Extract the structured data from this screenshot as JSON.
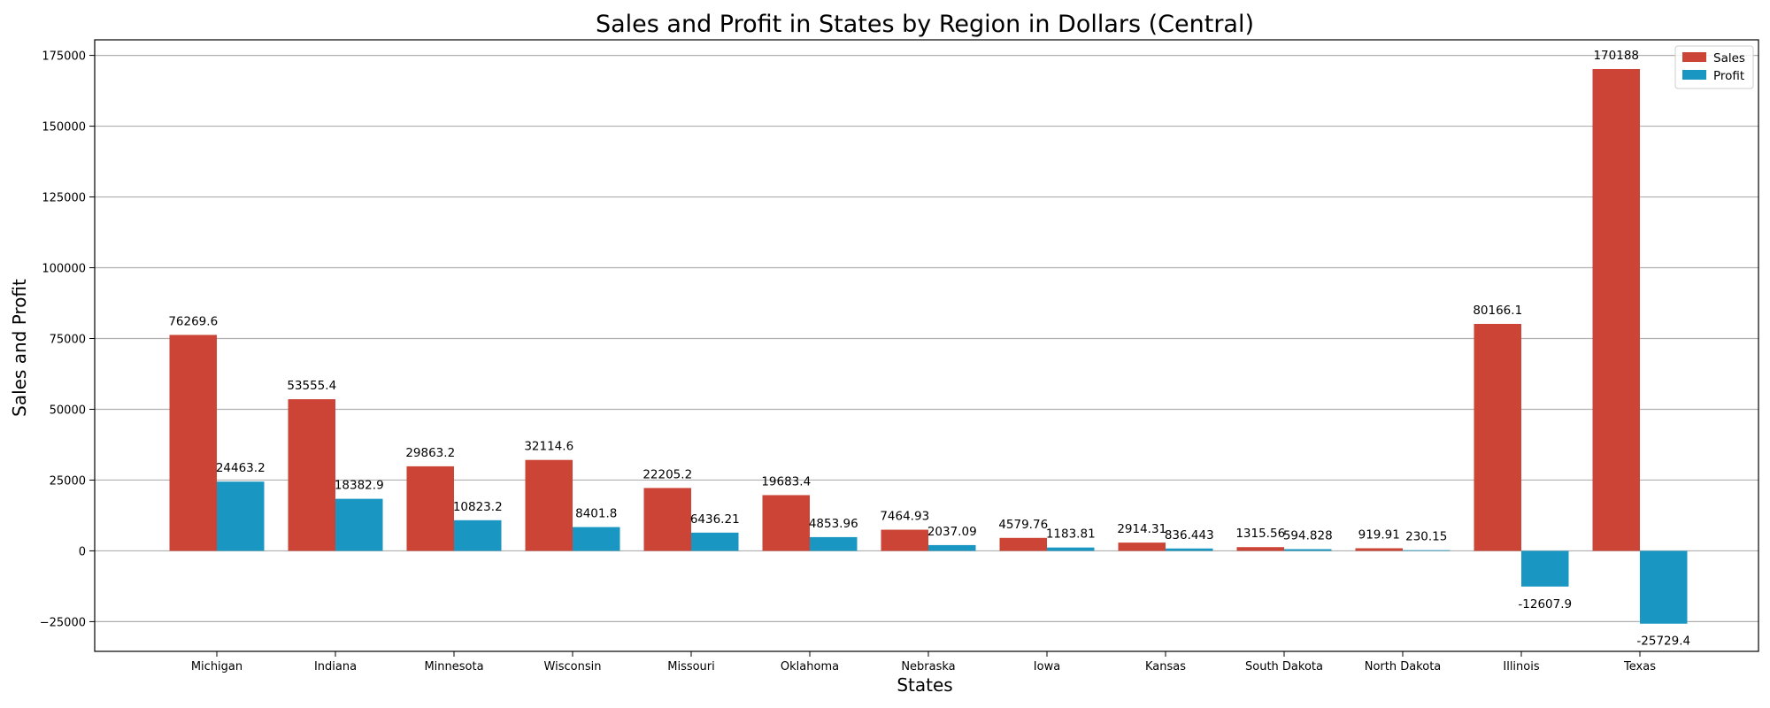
{
  "chart_data": {
    "type": "bar",
    "title": "Sales and Profit in States by Region in Dollars (Central)",
    "xlabel": "States",
    "ylabel": "Sales and Profit",
    "categories": [
      "Michigan",
      "Indiana",
      "Minnesota",
      "Wisconsin",
      "Missouri",
      "Oklahoma",
      "Nebraska",
      "Iowa",
      "Kansas",
      "South Dakota",
      "North Dakota",
      "Illinois",
      "Texas"
    ],
    "series": [
      {
        "name": "Sales",
        "color": "#cc4435",
        "values": [
          76269.6,
          53555.4,
          29863.2,
          32114.6,
          22205.2,
          19683.4,
          7464.93,
          4579.76,
          2914.31,
          1315.56,
          919.91,
          80166.1,
          170188
        ],
        "labels": [
          "76269.6",
          "53555.4",
          "29863.2",
          "32114.6",
          "22205.2",
          "19683.4",
          "7464.93",
          "4579.76",
          "2914.31",
          "1315.56",
          "919.91",
          "80166.1",
          "170188"
        ]
      },
      {
        "name": "Profit",
        "color": "#1a96c2",
        "values": [
          24463.2,
          18382.9,
          10823.2,
          8401.8,
          6436.21,
          4853.96,
          2037.09,
          1183.81,
          836.443,
          594.828,
          230.15,
          -12607.9,
          -25729.4
        ],
        "labels": [
          "24463.2",
          "18382.9",
          "10823.2",
          "8401.8",
          "6436.21",
          "4853.96",
          "2037.09",
          "1183.81",
          "836.443",
          "594.828",
          "230.15",
          "-12607.9",
          "-25729.4"
        ]
      }
    ],
    "ylim": [
      -35500,
      180500
    ],
    "yticks": [
      -25000,
      0,
      25000,
      50000,
      75000,
      100000,
      125000,
      150000,
      175000
    ],
    "ytick_labels": [
      "−25000",
      "0",
      "25000",
      "50000",
      "75000",
      "100000",
      "125000",
      "150000",
      "175000"
    ],
    "grid": "horizontal",
    "legend": "top-right"
  }
}
